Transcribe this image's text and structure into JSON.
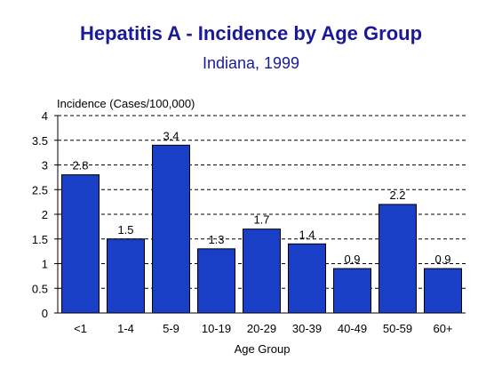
{
  "chart_data": {
    "type": "bar",
    "title": "Hepatitis A - Incidence by Age Group",
    "subtitle": "Indiana, 1999",
    "ylabel": "Incidence (Cases/100,000)",
    "xlabel": "Age Group",
    "categories": [
      "<1",
      "1-4",
      "5-9",
      "10-19",
      "20-29",
      "30-39",
      "40-49",
      "50-59",
      "60+"
    ],
    "values": [
      2.8,
      1.5,
      3.4,
      1.3,
      1.7,
      1.4,
      0.9,
      2.2,
      0.9
    ],
    "value_labels": [
      "2.8",
      "1.5",
      "3.4",
      "1.3",
      "1.7",
      "1.4",
      "0.9",
      "2.2",
      "0.9"
    ],
    "ylim": [
      0,
      4
    ],
    "yticks": [
      0,
      0.5,
      1,
      1.5,
      2,
      2.5,
      3,
      3.5,
      4
    ],
    "ytick_labels": [
      "0",
      "0.5",
      "1",
      "1.5",
      "2",
      "2.5",
      "3",
      "3.5",
      "4"
    ],
    "grid": "horizontal dashed",
    "legend": "none",
    "bar_color": "#1a3fc7"
  }
}
